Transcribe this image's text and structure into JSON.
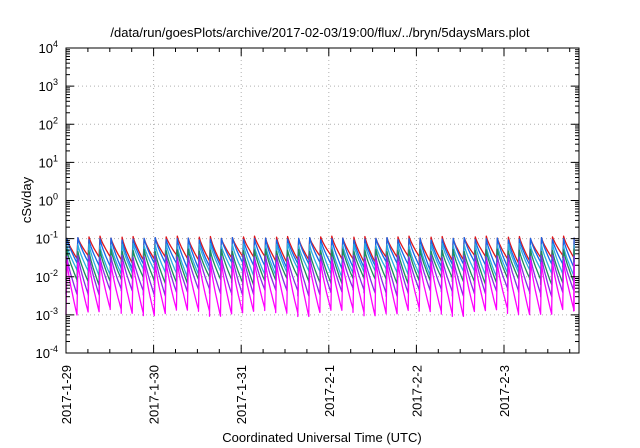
{
  "chart_data": {
    "type": "line",
    "title": "/data/run/goesPlots/archive/2017-02-03/19:00/flux/../bryn/5daysMars.plot",
    "xlabel": "Coordinated Universal Time (UTC)",
    "ylabel": "cSv/day",
    "y_scale": "log",
    "ylim": [
      0.0001,
      10000
    ],
    "y_ticks": [
      {
        "base": "10",
        "exp": "-4",
        "value": 0.0001
      },
      {
        "base": "10",
        "exp": "-3",
        "value": 0.001
      },
      {
        "base": "10",
        "exp": "-2",
        "value": 0.01
      },
      {
        "base": "10",
        "exp": "-1",
        "value": 0.1
      },
      {
        "base": "10",
        "exp": "0",
        "value": 1
      },
      {
        "base": "10",
        "exp": "1",
        "value": 10
      },
      {
        "base": "10",
        "exp": "2",
        "value": 100
      },
      {
        "base": "10",
        "exp": "3",
        "value": 1000
      },
      {
        "base": "10",
        "exp": "4",
        "value": 10000
      }
    ],
    "x_ticks": [
      "2017-1-29",
      "2017-1-30",
      "2017-1-31",
      "2017-2-1",
      "2017-2-2",
      "2017-2-3"
    ],
    "xlim_days": [
      0,
      5.8
    ],
    "grid": true,
    "sawtooth_period_days": 0.126,
    "series": [
      {
        "color": "#e0151a",
        "peak": 0.11,
        "trough": 0.03
      },
      {
        "color": "#1565e8",
        "peak": 0.1,
        "trough": 0.02
      },
      {
        "color": "#2ab0e0",
        "peak": 0.07,
        "trough": 0.013
      },
      {
        "color": "#1e8a5a",
        "peak": 0.05,
        "trough": 0.008
      },
      {
        "color": "#8a2be2",
        "peak": 0.035,
        "trough": 0.004
      },
      {
        "color": "#ff00ff",
        "peak": 0.025,
        "trough": 0.0012
      }
    ]
  }
}
